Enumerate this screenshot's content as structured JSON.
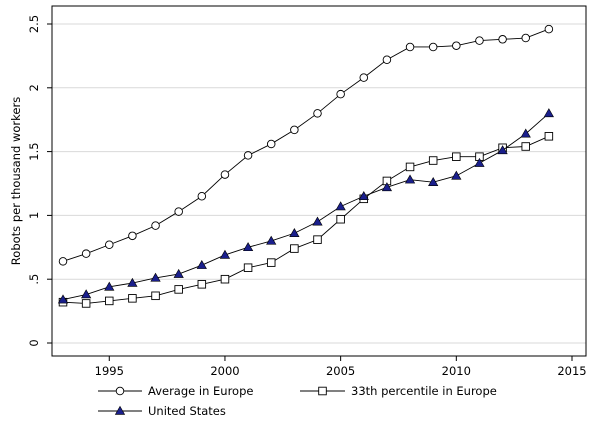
{
  "chart_data": {
    "type": "line",
    "title": "",
    "xlabel": "",
    "ylabel": "Robots per thousand workers",
    "xlim": [
      1992.5,
      2015.5
    ],
    "ylim": [
      0,
      2.5
    ],
    "x_ticks": [
      1995,
      2000,
      2005,
      2010,
      2015
    ],
    "x_tick_labels": [
      "1995",
      "2000",
      "2005",
      "2010",
      "2015"
    ],
    "y_ticks": [
      0,
      0.5,
      1,
      1.5,
      2,
      2.5
    ],
    "y_tick_labels": [
      "0",
      ".5",
      "1",
      "1.5",
      "2",
      "2.5"
    ],
    "grid": "horizontal",
    "legend_position": "bottom",
    "x": [
      1993,
      1994,
      1995,
      1996,
      1997,
      1998,
      1999,
      2000,
      2001,
      2002,
      2003,
      2004,
      2005,
      2006,
      2007,
      2008,
      2009,
      2010,
      2011,
      2012,
      2013,
      2014
    ],
    "series": [
      {
        "name": "Average in Europe",
        "marker": "circle",
        "values": [
          0.64,
          0.7,
          0.77,
          0.84,
          0.92,
          1.03,
          1.15,
          1.32,
          1.47,
          1.56,
          1.67,
          1.8,
          1.95,
          2.08,
          2.22,
          2.32,
          2.32,
          2.33,
          2.37,
          2.38,
          2.39,
          2.46
        ]
      },
      {
        "name": "33th percentile in Europe",
        "marker": "square",
        "values": [
          0.32,
          0.31,
          0.33,
          0.35,
          0.37,
          0.42,
          0.46,
          0.5,
          0.59,
          0.63,
          0.74,
          0.81,
          0.97,
          1.13,
          1.27,
          1.38,
          1.43,
          1.46,
          1.46,
          1.53,
          1.54,
          1.62
        ]
      },
      {
        "name": "United States",
        "marker": "triangle",
        "values": [
          0.34,
          0.38,
          0.44,
          0.47,
          0.51,
          0.54,
          0.61,
          0.69,
          0.75,
          0.8,
          0.86,
          0.95,
          1.07,
          1.15,
          1.22,
          1.28,
          1.26,
          1.31,
          1.41,
          1.51,
          1.64,
          1.8
        ]
      }
    ],
    "colors": {
      "line": "#000000",
      "triangle_fill": "#1a1f8c",
      "grid": "#d9d9d9",
      "frame": "#000000"
    }
  }
}
